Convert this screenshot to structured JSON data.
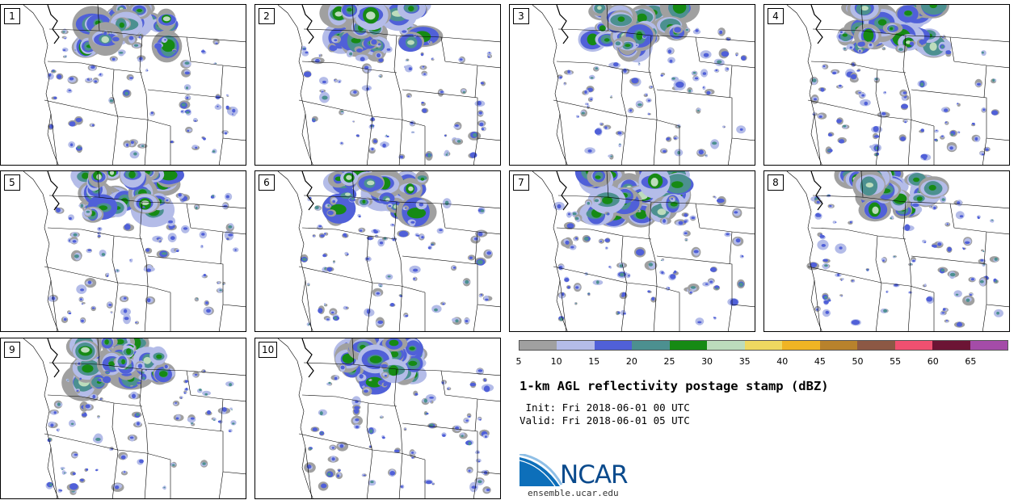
{
  "panels": [
    "1",
    "2",
    "3",
    "4",
    "5",
    "6",
    "7",
    "8",
    "9",
    "10"
  ],
  "colorbar": {
    "colors": [
      "#a0a0a0",
      "#b4bce8",
      "#5060d8",
      "#4c9090",
      "#168a14",
      "#bcdcbc",
      "#eed860",
      "#f0b424",
      "#b8822c",
      "#8c5844",
      "#f05070",
      "#6c1434",
      "#a44ca8"
    ],
    "ticks": [
      "5",
      "10",
      "15",
      "20",
      "25",
      "30",
      "35",
      "40",
      "45",
      "50",
      "55",
      "60",
      "65"
    ]
  },
  "title": "1-km AGL reflectivity postage stamp (dBZ)",
  "init": " Init: Fri 2018-06-01 00 UTC",
  "valid": "Valid: Fri 2018-06-01 05 UTC",
  "logo_text": "NCAR",
  "url": "ensemble.ucar.edu"
}
